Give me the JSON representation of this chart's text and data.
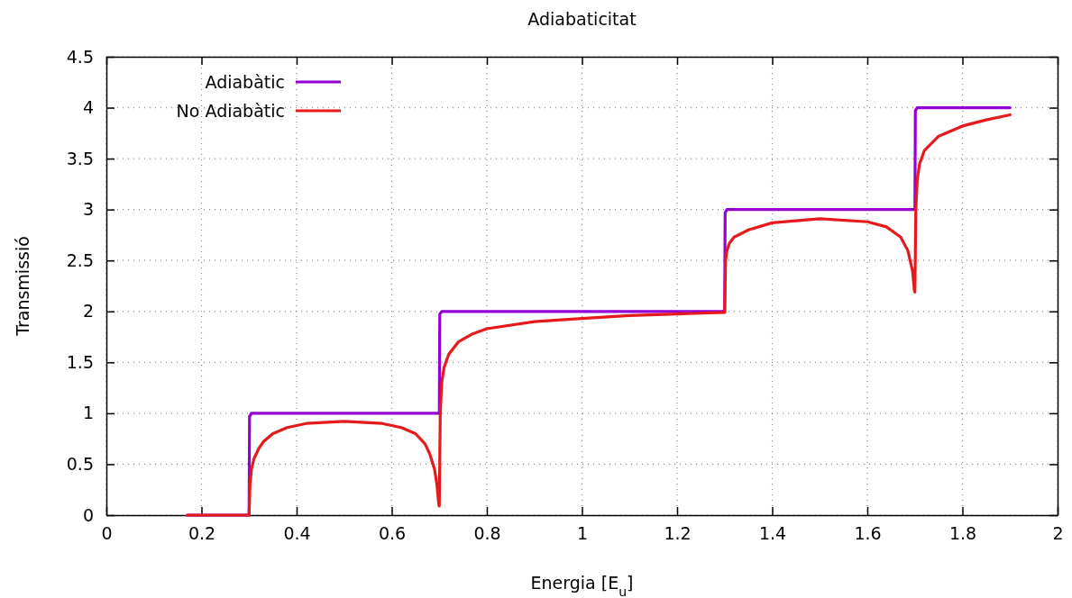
{
  "chart_data": {
    "type": "line",
    "title": "Adiabaticitat",
    "xlabel": "Energia [E$_{u}$]",
    "ylabel": "Transmissió",
    "xlim": [
      0,
      2
    ],
    "xticks": [
      0,
      0.2,
      0.4,
      0.6,
      0.8,
      1,
      1.2,
      1.4,
      1.6,
      1.8,
      2
    ],
    "ylim": [
      0,
      4.5
    ],
    "yticks": [
      0,
      0.5,
      1,
      1.5,
      2,
      2.5,
      3,
      3.5,
      4,
      4.5
    ],
    "grid": true,
    "legend": "top left",
    "marker": "none",
    "line_style": "solid",
    "series": [
      {
        "name": "Adiabàtic",
        "color": "#9400d3",
        "x": [
          0.17,
          0.3,
          0.301,
          0.305,
          0.7,
          0.701,
          0.705,
          1.3,
          1.301,
          1.305,
          1.7,
          1.701,
          1.705,
          1.9
        ],
        "values": [
          0,
          0,
          0.97,
          1,
          1,
          1.97,
          2,
          2,
          2.97,
          3,
          3,
          3.97,
          4,
          4
        ]
      },
      {
        "name": "No Adiabàtic",
        "color": "#e41a1c",
        "x": [
          0.17,
          0.3,
          0.302,
          0.305,
          0.31,
          0.32,
          0.33,
          0.35,
          0.38,
          0.42,
          0.5,
          0.58,
          0.62,
          0.65,
          0.67,
          0.68,
          0.69,
          0.695,
          0.699,
          0.7,
          0.702,
          0.705,
          0.71,
          0.72,
          0.74,
          0.77,
          0.8,
          0.9,
          1.0,
          1.1,
          1.2,
          1.3,
          1.302,
          1.305,
          1.31,
          1.32,
          1.35,
          1.4,
          1.5,
          1.6,
          1.64,
          1.67,
          1.685,
          1.695,
          1.699,
          1.7,
          1.702,
          1.705,
          1.71,
          1.72,
          1.75,
          1.8,
          1.85,
          1.9
        ],
        "values": [
          0,
          0,
          0.3,
          0.45,
          0.55,
          0.65,
          0.72,
          0.8,
          0.86,
          0.9,
          0.92,
          0.9,
          0.86,
          0.8,
          0.7,
          0.6,
          0.45,
          0.3,
          0.1,
          0.09,
          1.0,
          1.3,
          1.45,
          1.58,
          1.7,
          1.78,
          1.83,
          1.9,
          1.93,
          1.96,
          1.975,
          1.99,
          2.5,
          2.6,
          2.67,
          2.73,
          2.8,
          2.87,
          2.91,
          2.88,
          2.83,
          2.73,
          2.6,
          2.4,
          2.2,
          2.19,
          3.0,
          3.3,
          3.45,
          3.58,
          3.72,
          3.82,
          3.88,
          3.93
        ]
      }
    ]
  }
}
